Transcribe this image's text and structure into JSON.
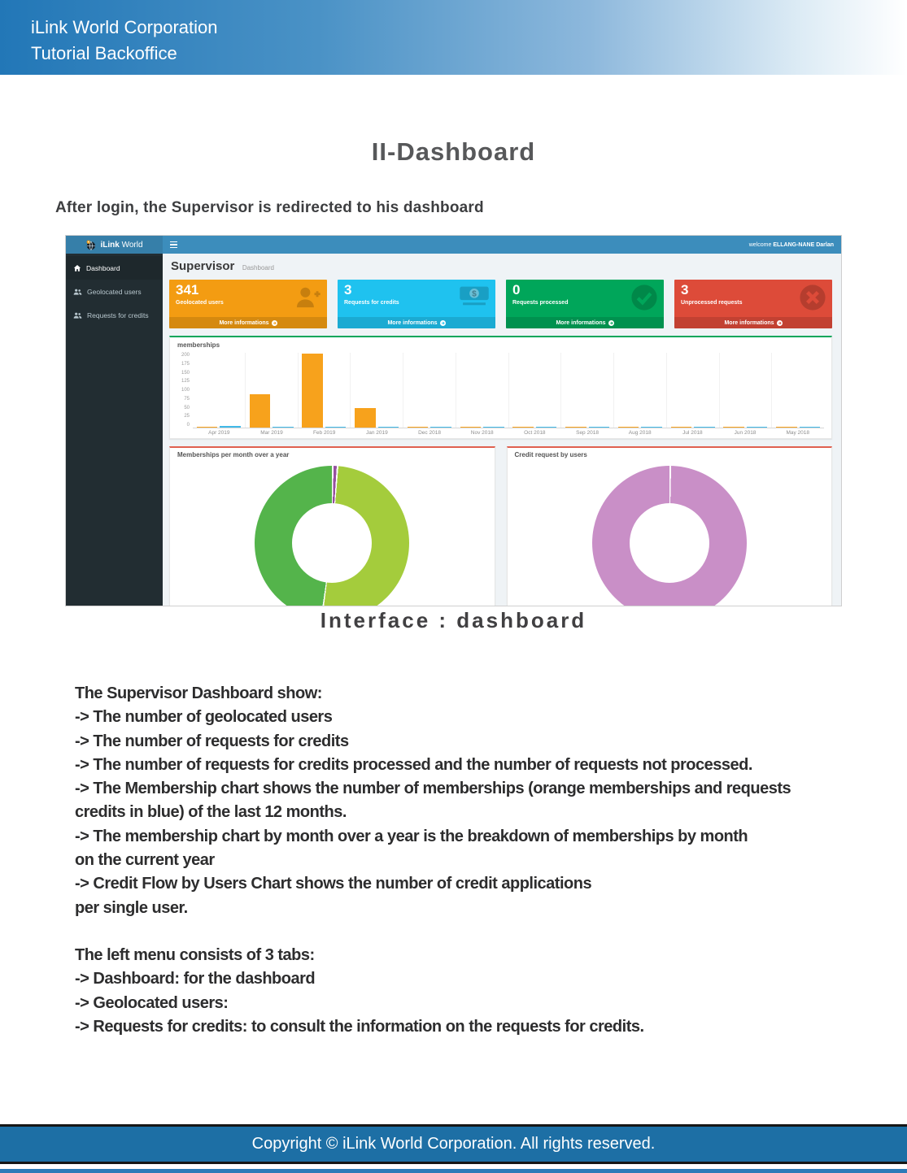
{
  "page": {
    "header": {
      "line1": "iLink World Corporation",
      "line2": "Tutorial Backoffice"
    },
    "title": "II-Dashboard",
    "intro": "After login, the Supervisor is redirected to his dashboard",
    "caption": "Interface : dashboard",
    "body": {
      "para1": [
        "The Supervisor Dashboard show:",
        "-> The number of geolocated users",
        "-> The number of requests for credits",
        "-> The number of requests for credits processed and the number of requests not processed.",
        "-> The Membership chart shows the number of memberships (orange memberships and requests",
        "credits in blue) of the last 12 months.",
        "-> The membership chart by month over a year is the breakdown of memberships by month",
        "on the current year",
        "-> Credit Flow by Users Chart shows the number of credit applications",
        "per single user."
      ],
      "para2": [
        "The left menu consists of 3 tabs:",
        "-> Dashboard: for the dashboard",
        "-> Geolocated users:",
        "-> Requests for credits: to consult the information on the requests for credits."
      ]
    },
    "footer": "Copyright © iLink World Corporation. All rights reserved."
  },
  "dashboard": {
    "brand": {
      "bold": "iLink",
      "light": "World"
    },
    "navbar": {
      "welcome_prefix": "welcome",
      "user": "ELLANG-NANE Darlan"
    },
    "sidebar": [
      {
        "label": "Dashboard",
        "icon": "dashboard-icon",
        "active": true
      },
      {
        "label": "Geolocated users",
        "icon": "users-icon",
        "active": false
      },
      {
        "label": "Requests for credits",
        "icon": "users-icon",
        "active": false
      }
    ],
    "heading": {
      "title": "Supervisor",
      "subtitle": "Dashboard"
    },
    "cards": [
      {
        "value": "341",
        "label": "Geolocated users",
        "footer_label": "More informations",
        "color": "#f39c12",
        "icon": "user-plus-icon"
      },
      {
        "value": "3",
        "label": "Requests for credits",
        "footer_label": "More informations",
        "color": "#1fc2ef",
        "icon": "money-icon"
      },
      {
        "value": "0",
        "label": "Requests processed",
        "footer_label": "More informations",
        "color": "#00a65a",
        "icon": "check-circle-icon"
      },
      {
        "value": "3",
        "label": "Unprocessed requests",
        "footer_label": "More informations",
        "color": "#dd4b39",
        "icon": "x-circle-icon"
      }
    ],
    "chart_data": [
      {
        "type": "bar",
        "title": "memberships",
        "categories": [
          "Apr 2019",
          "Mar 2019",
          "Feb 2019",
          "Jan 2019",
          "Dec 2018",
          "Nov 2018",
          "Oct 2018",
          "Sep 2018",
          "Aug 2018",
          "Jul 2018",
          "Jun 2018",
          "May 2018"
        ],
        "series": [
          {
            "name": "memberships",
            "color": "#f7a21c",
            "values": [
              1,
              90,
              198,
              52,
              1,
              3,
              1,
              1,
              1,
              1,
              1,
              1
            ]
          },
          {
            "name": "requests credits",
            "color": "#41b9e8",
            "values": [
              4,
              1,
              1,
              1,
              1,
              1,
              1,
              1,
              1,
              1,
              1,
              1
            ]
          }
        ],
        "ylim": [
          0,
          200
        ],
        "yticks": [
          200,
          175,
          150,
          125,
          100,
          75,
          50,
          25,
          0
        ],
        "xlabel": "",
        "ylabel": "",
        "grid": "vertical",
        "legend": "none"
      },
      {
        "type": "pie",
        "title": "Memberships per month over a year",
        "donut": true,
        "slices": [
          {
            "value": 1,
            "color": "#9650a0"
          },
          {
            "value": 51,
            "color": "#a4cc3c"
          },
          {
            "value": 48,
            "color": "#54b44b"
          }
        ]
      },
      {
        "type": "pie",
        "title": "Credit request by users",
        "donut": true,
        "slices": [
          {
            "value": 100,
            "color": "#c98fc7"
          }
        ]
      }
    ]
  }
}
